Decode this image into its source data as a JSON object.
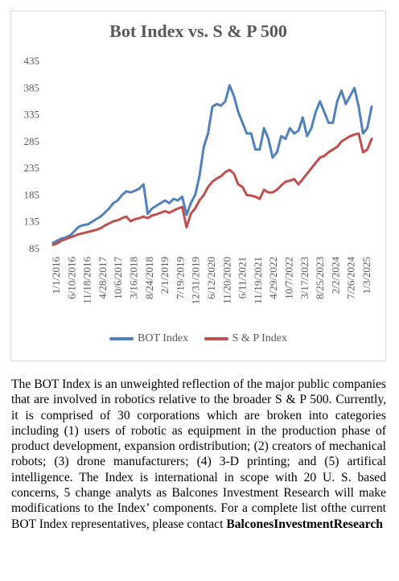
{
  "chart_data": {
    "type": "line",
    "title": "Bot Index vs. S & P 500",
    "ylim": [
      85,
      435
    ],
    "yticks": [
      85,
      135,
      185,
      235,
      285,
      335,
      385,
      435
    ],
    "xtick_labels": [
      "1/1/2016",
      "6/10/2016",
      "11/18/2016",
      "4/28/2017",
      "10/6/2017",
      "3/16/2018",
      "8/24/2018",
      "2/1/2019",
      "7/19/2019",
      "12/31/2019",
      "6/12/2020",
      "11/20/2020",
      "6/11/2021",
      "11/19/2021",
      "4/29/2022",
      "10/7/2022",
      "3/17/2023",
      "8/25/2023",
      "2/2/2024",
      "7/26/2024",
      "1/3/2025"
    ],
    "legend_position": "bottom",
    "grid": false,
    "series": [
      {
        "name": "BOT Index",
        "color": "#4f81bd",
        "values": [
          96,
          100,
          104,
          106,
          110,
          118,
          126,
          129,
          130,
          135,
          140,
          145,
          152,
          160,
          170,
          175,
          185,
          192,
          190,
          193,
          197,
          205,
          150,
          160,
          165,
          170,
          175,
          170,
          178,
          175,
          182,
          148,
          170,
          185,
          220,
          275,
          300,
          350,
          355,
          352,
          360,
          390,
          370,
          340,
          320,
          300,
          300,
          270,
          270,
          310,
          290,
          255,
          265,
          295,
          290,
          310,
          300,
          305,
          330,
          295,
          310,
          340,
          360,
          340,
          320,
          320,
          360,
          380,
          355,
          370,
          385,
          350,
          300,
          310,
          350
        ]
      },
      {
        "name": "S & P Index",
        "color": "#c0504d",
        "values": [
          92,
          95,
          100,
          103,
          106,
          109,
          112,
          114,
          116,
          118,
          120,
          123,
          128,
          132,
          136,
          138,
          142,
          145,
          136,
          140,
          142,
          145,
          142,
          147,
          149,
          152,
          155,
          152,
          156,
          160,
          163,
          125,
          150,
          160,
          175,
          185,
          200,
          210,
          216,
          220,
          228,
          232,
          225,
          205,
          200,
          185,
          184,
          182,
          178,
          195,
          190,
          190,
          195,
          203,
          210,
          212,
          215,
          205,
          215,
          225,
          235,
          245,
          255,
          258,
          265,
          270,
          275,
          285,
          290,
          295,
          298,
          300,
          265,
          270,
          290
        ]
      }
    ]
  },
  "legend": {
    "bot_label": "BOT Index",
    "sp_label": "S & P Index"
  },
  "description": {
    "body": "The BOT Index is an unweighted reflection of the major public companies that are involved in robotics relative to the broader S & P 500. Currently, it is comprised of 30 corporations which are broken into categories including (1) users of robotic as equipment in the production phase of product development, expansion ordistribution; (2) creators of mechanical robots; (3) drone manufacturers; (4) 3-D printing; and (5) artifical intelligence. The Index is international in scope with 20 U. S. based concerns, 5 change analyts as Balcones Investment Research will make modifications to the Index’ components. For a  complete list ofthe current BOT Index representatives, please contact",
    "contact_bold": "BalconesInvestmentResearch"
  }
}
